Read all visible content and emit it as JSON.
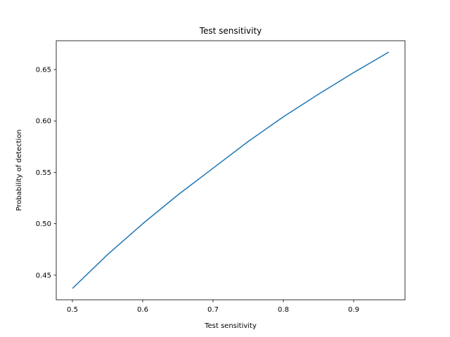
{
  "chart_data": {
    "type": "line",
    "title": "Test sensitivity",
    "xlabel": "Test sensitivity",
    "ylabel": "Probability of detection",
    "xlim": [
      0.477,
      0.973
    ],
    "ylim": [
      0.426,
      0.678
    ],
    "xticks": [
      0.5,
      0.6,
      0.7,
      0.8,
      0.9
    ],
    "xtick_labels": [
      "0.5",
      "0.6",
      "0.7",
      "0.8",
      "0.9"
    ],
    "yticks": [
      0.45,
      0.5,
      0.55,
      0.6,
      0.65
    ],
    "ytick_labels": [
      "0.45",
      "0.50",
      "0.55",
      "0.60",
      "0.65"
    ],
    "grid": false,
    "series": [
      {
        "name": "Probability of detection",
        "color": "#1f77b4",
        "x": [
          0.5,
          0.55,
          0.6,
          0.65,
          0.7,
          0.75,
          0.8,
          0.85,
          0.9,
          0.95
        ],
        "y": [
          0.437,
          0.47,
          0.5,
          0.528,
          0.554,
          0.58,
          0.604,
          0.626,
          0.647,
          0.667
        ]
      }
    ]
  }
}
